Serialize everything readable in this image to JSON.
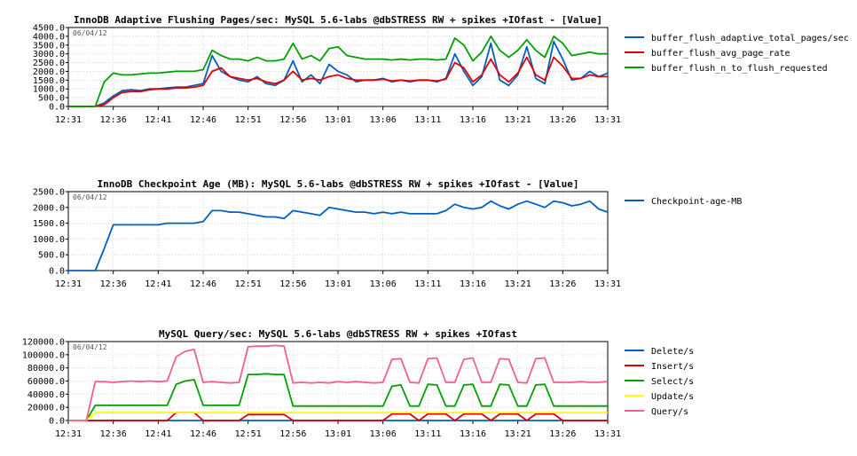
{
  "chart_data": [
    {
      "type": "line",
      "title": "InnoDB Adaptive Flushing Pages/sec: MySQL 5.6-labs @dbSTRESS RW + spikes +IOfast - [Value]",
      "date_label": "06/04/12",
      "x_ticks": [
        "12:31",
        "12:36",
        "12:41",
        "12:46",
        "12:51",
        "12:56",
        "13:01",
        "13:06",
        "13:11",
        "13:16",
        "13:21",
        "13:26",
        "13:31"
      ],
      "x": [
        0,
        1,
        2,
        3,
        4,
        5,
        6,
        7,
        8,
        9,
        10,
        11,
        12,
        13,
        14,
        15,
        16,
        17,
        18,
        19,
        20,
        21,
        22,
        23,
        24,
        25,
        26,
        27,
        28,
        29,
        30,
        31,
        32,
        33,
        34,
        35,
        36,
        37,
        38,
        39,
        40,
        41,
        42,
        43,
        44,
        45,
        46,
        47,
        48,
        49,
        50,
        51,
        52,
        53,
        54,
        55,
        56,
        57,
        58,
        59,
        60
      ],
      "y_ticks": [
        "0.0",
        "500.0",
        "1000.0",
        "1500.0",
        "2000.0",
        "2500.0",
        "3000.0",
        "3500.0",
        "4000.0",
        "4500.0"
      ],
      "ylim": [
        0,
        4500
      ],
      "series": [
        {
          "name": "buffer_flush_adaptive_total_pages/sec",
          "color": "#0060c0",
          "values": [
            0,
            0,
            0,
            0,
            200,
            600,
            900,
            950,
            900,
            1000,
            1000,
            1050,
            1100,
            1100,
            1200,
            1300,
            2900,
            2000,
            1700,
            1500,
            1400,
            1700,
            1300,
            1200,
            1500,
            2600,
            1400,
            1800,
            1300,
            2400,
            2000,
            1800,
            1400,
            1500,
            1500,
            1600,
            1400,
            1500,
            1400,
            1500,
            1500,
            1400,
            1600,
            3000,
            2000,
            1200,
            1700,
            3600,
            1500,
            1200,
            1800,
            3400,
            1600,
            1300,
            3700,
            2700,
            1500,
            1600,
            2000,
            1700,
            1900
          ]
        },
        {
          "name": "buffer_flush_avg_page_rate",
          "color": "#e00000",
          "values": [
            0,
            0,
            0,
            0,
            100,
            500,
            800,
            850,
            850,
            950,
            1000,
            1000,
            1050,
            1050,
            1100,
            1200,
            2000,
            2200,
            1700,
            1600,
            1500,
            1600,
            1400,
            1300,
            1500,
            2000,
            1500,
            1600,
            1500,
            1700,
            1800,
            1600,
            1500,
            1500,
            1500,
            1550,
            1450,
            1500,
            1450,
            1500,
            1500,
            1450,
            1550,
            2500,
            2200,
            1400,
            1800,
            2700,
            1800,
            1400,
            1900,
            2800,
            1800,
            1500,
            2800,
            2300,
            1600,
            1600,
            1800,
            1700,
            1700
          ]
        },
        {
          "name": "buffer_flush_n_to_flush_requested",
          "color": "#00a000",
          "values": [
            0,
            0,
            0,
            0,
            1400,
            1900,
            1800,
            1800,
            1850,
            1900,
            1900,
            1950,
            2000,
            2000,
            2000,
            2100,
            3200,
            2900,
            2700,
            2700,
            2600,
            2800,
            2600,
            2600,
            2700,
            3600,
            2700,
            2900,
            2600,
            3300,
            3400,
            2900,
            2800,
            2700,
            2700,
            2700,
            2650,
            2700,
            2650,
            2700,
            2700,
            2650,
            2700,
            3900,
            3500,
            2600,
            3100,
            4000,
            3200,
            2800,
            3200,
            3800,
            3200,
            2800,
            4000,
            3600,
            2900,
            3000,
            3100,
            3000,
            3000
          ]
        }
      ]
    },
    {
      "type": "line",
      "title": "InnoDB Checkpoint Age (MB): MySQL 5.6-labs @dbSTRESS RW + spikes +IOfast - [Value]",
      "date_label": "06/04/12",
      "x_ticks": [
        "12:31",
        "12:36",
        "12:41",
        "12:46",
        "12:51",
        "12:56",
        "13:01",
        "13:06",
        "13:11",
        "13:16",
        "13:21",
        "13:26",
        "13:31"
      ],
      "x": [
        0,
        1,
        2,
        3,
        4,
        5,
        6,
        7,
        8,
        9,
        10,
        11,
        12,
        13,
        14,
        15,
        16,
        17,
        18,
        19,
        20,
        21,
        22,
        23,
        24,
        25,
        26,
        27,
        28,
        29,
        30,
        31,
        32,
        33,
        34,
        35,
        36,
        37,
        38,
        39,
        40,
        41,
        42,
        43,
        44,
        45,
        46,
        47,
        48,
        49,
        50,
        51,
        52,
        53,
        54,
        55,
        56,
        57,
        58,
        59,
        60
      ],
      "y_ticks": [
        "0.0",
        "500.0",
        "1000.0",
        "1500.0",
        "2000.0",
        "2500.0"
      ],
      "ylim": [
        0,
        2500
      ],
      "series": [
        {
          "name": "Checkpoint-age-MB",
          "color": "#0060c0",
          "values": [
            0,
            0,
            0,
            0,
            700,
            1450,
            1450,
            1450,
            1450,
            1450,
            1450,
            1500,
            1500,
            1500,
            1500,
            1550,
            1900,
            1900,
            1850,
            1850,
            1800,
            1750,
            1700,
            1700,
            1650,
            1900,
            1850,
            1800,
            1750,
            2000,
            1950,
            1900,
            1850,
            1850,
            1800,
            1850,
            1800,
            1850,
            1800,
            1800,
            1800,
            1800,
            1900,
            2100,
            2000,
            1950,
            2000,
            2200,
            2050,
            1950,
            2100,
            2200,
            2100,
            2000,
            2200,
            2150,
            2050,
            2100,
            2200,
            1950,
            1850
          ]
        }
      ]
    },
    {
      "type": "line",
      "title": "MySQL Query/sec: MySQL 5.6-labs @dbSTRESS RW + spikes +IOfast",
      "date_label": "06/04/12",
      "x_ticks": [
        "12:31",
        "12:36",
        "12:41",
        "12:46",
        "12:51",
        "12:56",
        "13:01",
        "13:06",
        "13:11",
        "13:16",
        "13:21",
        "13:26",
        "13:31"
      ],
      "x": [
        0,
        1,
        2,
        3,
        4,
        5,
        6,
        7,
        8,
        9,
        10,
        11,
        12,
        13,
        14,
        15,
        16,
        17,
        18,
        19,
        20,
        21,
        22,
        23,
        24,
        25,
        26,
        27,
        28,
        29,
        30,
        31,
        32,
        33,
        34,
        35,
        36,
        37,
        38,
        39,
        40,
        41,
        42,
        43,
        44,
        45,
        46,
        47,
        48,
        49,
        50,
        51,
        52,
        53,
        54,
        55,
        56,
        57,
        58,
        59,
        60
      ],
      "y_ticks": [
        "0.0",
        "20000.0",
        "40000.0",
        "60000.0",
        "80000.0",
        "100000.0",
        "120000.0"
      ],
      "ylim": [
        0,
        120000
      ],
      "series": [
        {
          "name": "Delete/s",
          "color": "#0060c0",
          "values": [
            0,
            0,
            0,
            0,
            0,
            0,
            0,
            0,
            0,
            0,
            0,
            0,
            0,
            0,
            0,
            0,
            0,
            0,
            0,
            0,
            0,
            0,
            0,
            0,
            0,
            0,
            0,
            0,
            0,
            0,
            0,
            0,
            0,
            0,
            0,
            0,
            0,
            0,
            0,
            0,
            0,
            0,
            0,
            0,
            0,
            0,
            0,
            0,
            0,
            0,
            0,
            0,
            0,
            0,
            0,
            0,
            0,
            0,
            0,
            0,
            0
          ]
        },
        {
          "name": "Insert/s",
          "color": "#e00000",
          "values": [
            0,
            0,
            0,
            0,
            0,
            0,
            0,
            0,
            0,
            0,
            0,
            0,
            12000,
            12000,
            12000,
            0,
            0,
            0,
            0,
            0,
            9000,
            9000,
            9000,
            9000,
            9000,
            0,
            0,
            0,
            0,
            0,
            0,
            0,
            0,
            0,
            0,
            0,
            10000,
            10000,
            10000,
            0,
            10000,
            10000,
            10000,
            0,
            10000,
            10000,
            10000,
            0,
            10000,
            10000,
            10000,
            0,
            10000,
            10000,
            10000,
            0,
            0,
            0,
            0,
            0,
            0
          ]
        },
        {
          "name": "Select/s",
          "color": "#00a000",
          "values": [
            0,
            0,
            0,
            23000,
            23000,
            23000,
            23000,
            23000,
            23000,
            23000,
            23000,
            23000,
            55000,
            60000,
            62000,
            23000,
            23000,
            23000,
            23000,
            23000,
            70000,
            70000,
            71000,
            70000,
            70000,
            22000,
            22000,
            22000,
            22000,
            22000,
            22000,
            22000,
            22000,
            22000,
            22000,
            22000,
            52000,
            54000,
            22000,
            22000,
            55000,
            54000,
            22000,
            22000,
            54000,
            55000,
            22000,
            22000,
            55000,
            54000,
            22000,
            22000,
            54000,
            55000,
            22000,
            22000,
            22000,
            22000,
            22000,
            22000,
            22000
          ]
        },
        {
          "name": "Update/s",
          "color": "#ffff00",
          "values": [
            0,
            0,
            0,
            12000,
            12000,
            12000,
            12000,
            12000,
            12000,
            12000,
            12000,
            12000,
            12000,
            12000,
            12000,
            12000,
            12000,
            12000,
            12000,
            12000,
            12000,
            12000,
            12000,
            12000,
            12000,
            12000,
            12000,
            12000,
            12000,
            12000,
            12000,
            12000,
            12000,
            12000,
            12000,
            12000,
            12000,
            12000,
            12000,
            12000,
            12000,
            12000,
            12000,
            12000,
            12000,
            12000,
            12000,
            12000,
            12000,
            12000,
            12000,
            12000,
            12000,
            12000,
            12000,
            12000,
            12000,
            12000,
            12000,
            12000,
            12000
          ]
        },
        {
          "name": "Query/s",
          "color": "#f06090",
          "values": [
            0,
            0,
            0,
            59000,
            59000,
            58000,
            59000,
            60000,
            59000,
            60000,
            59000,
            60000,
            97000,
            105000,
            108000,
            58000,
            59000,
            58000,
            57000,
            58000,
            112000,
            113000,
            113000,
            114000,
            113000,
            57000,
            58000,
            57000,
            58000,
            57000,
            59000,
            58000,
            59000,
            58000,
            57000,
            58000,
            93000,
            94000,
            58000,
            57000,
            94000,
            95000,
            58000,
            58000,
            93000,
            95000,
            58000,
            58000,
            94000,
            93000,
            58000,
            57000,
            94000,
            95000,
            58000,
            58000,
            58000,
            59000,
            58000,
            58000,
            59000
          ]
        }
      ]
    }
  ]
}
